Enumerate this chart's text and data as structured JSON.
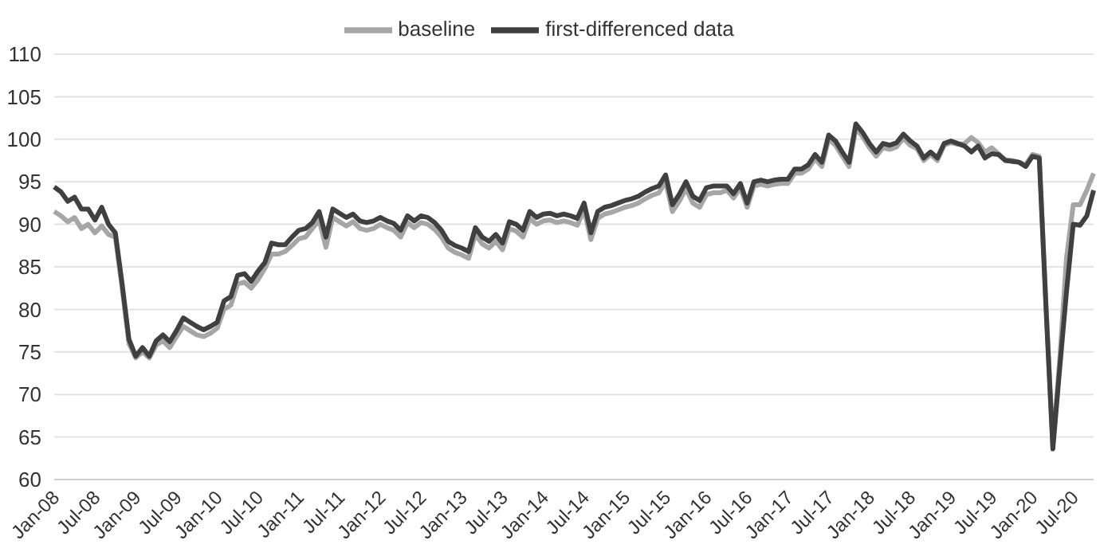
{
  "chart_data": {
    "type": "line",
    "categories": [
      "Jan-08",
      null,
      null,
      null,
      null,
      null,
      "Jul-08",
      null,
      null,
      null,
      null,
      null,
      "Jan-09",
      null,
      null,
      null,
      null,
      null,
      "Jul-09",
      null,
      null,
      null,
      null,
      null,
      "Jan-10",
      null,
      null,
      null,
      null,
      null,
      "Jul-10",
      null,
      null,
      null,
      null,
      null,
      "Jan-11",
      null,
      null,
      null,
      null,
      null,
      "Jul-11",
      null,
      null,
      null,
      null,
      null,
      "Jan-12",
      null,
      null,
      null,
      null,
      null,
      "Jul-12",
      null,
      null,
      null,
      null,
      null,
      "Jan-13",
      null,
      null,
      null,
      null,
      null,
      "Jul-13",
      null,
      null,
      null,
      null,
      null,
      "Jan-14",
      null,
      null,
      null,
      null,
      null,
      "Jul-14",
      null,
      null,
      null,
      null,
      null,
      "Jan-15",
      null,
      null,
      null,
      null,
      null,
      "Jul-15",
      null,
      null,
      null,
      null,
      null,
      "Jan-16",
      null,
      null,
      null,
      null,
      null,
      "Jul-16",
      null,
      null,
      null,
      null,
      null,
      "Jan-17",
      null,
      null,
      null,
      null,
      null,
      "Jul-17",
      null,
      null,
      null,
      null,
      null,
      "Jan-18",
      null,
      null,
      null,
      null,
      null,
      "Jul-18",
      null,
      null,
      null,
      null,
      null,
      "Jan-19",
      null,
      null,
      null,
      null,
      null,
      "Jul-19",
      null,
      null,
      null,
      null,
      null,
      "Jan-20",
      null,
      null,
      null,
      null,
      null,
      "Jul-20",
      null,
      null,
      null
    ],
    "series": [
      {
        "name": "baseline",
        "color": "#a6a6a6",
        "values": [
          91.5,
          91,
          90.3,
          90.8,
          89.5,
          90,
          89,
          89.8,
          88.8,
          88.5,
          82.5,
          76,
          74.3,
          75,
          74.3,
          75.8,
          76.3,
          75.5,
          76.8,
          78,
          77.5,
          77,
          76.8,
          77.2,
          77.8,
          80,
          80.5,
          83,
          83.2,
          82.5,
          83.5,
          84.8,
          86.5,
          86.5,
          86.8,
          87.5,
          88.3,
          88.5,
          89.5,
          90.5,
          87.3,
          90.8,
          90.3,
          89.8,
          90.3,
          89.5,
          89.3,
          89.5,
          90,
          89.6,
          89.3,
          88.5,
          90.2,
          89.6,
          90.2,
          90,
          89.4,
          88.5,
          87.2,
          86.7,
          86.4,
          86,
          88.8,
          87.7,
          87.2,
          88,
          87,
          89.5,
          89.2,
          88.5,
          90.7,
          90,
          90.4,
          90.5,
          90.2,
          90.4,
          90.2,
          89.9,
          91.7,
          88.2,
          90.7,
          91.2,
          91.4,
          91.7,
          92,
          92.2,
          92.5,
          93,
          93.4,
          93.7,
          95,
          91.5,
          92.7,
          94.2,
          92.5,
          92,
          93.5,
          93.7,
          93.7,
          94,
          93.1,
          94.3,
          92,
          94.5,
          94.7,
          94.5,
          94.7,
          94.8,
          94.8,
          96,
          96,
          96.5,
          97.7,
          96.8,
          100,
          99.3,
          98,
          96.8,
          101.3,
          100.3,
          99,
          98,
          99,
          98.8,
          99.1,
          100.1,
          99.3,
          98.9,
          97.5,
          98.2,
          97.5,
          99.3,
          99.6,
          99.4,
          99.5,
          100.2,
          99.6,
          98.5,
          99,
          98.3,
          97.6,
          97.5,
          97.3,
          97,
          98.2,
          98,
          80.5,
          64,
          74,
          86,
          92.3,
          92.3,
          94,
          96
        ]
      },
      {
        "name": "first-differenced data",
        "color": "#404040",
        "values": [
          94.4,
          93.8,
          92.7,
          93.2,
          91.8,
          91.8,
          90.5,
          92,
          90,
          89,
          83,
          76.5,
          74.5,
          75.5,
          74.5,
          76.3,
          77,
          76.2,
          77.5,
          79,
          78.5,
          78,
          77.6,
          78,
          78.5,
          81,
          81.5,
          84,
          84.2,
          83.3,
          84.5,
          85.5,
          87.8,
          87.6,
          87.6,
          88.5,
          89.3,
          89.5,
          90.2,
          91.5,
          88.5,
          91.8,
          91.3,
          90.8,
          91.2,
          90.4,
          90.2,
          90.4,
          90.8,
          90.4,
          90.1,
          89.3,
          91,
          90.4,
          91,
          90.8,
          90.2,
          89.3,
          88,
          87.5,
          87.2,
          86.8,
          89.6,
          88.5,
          88,
          88.8,
          87.8,
          90.3,
          90,
          89.3,
          91.5,
          90.8,
          91.2,
          91.3,
          91,
          91.2,
          91,
          90.7,
          92.5,
          89,
          91.5,
          92,
          92.2,
          92.5,
          92.8,
          93,
          93.3,
          93.8,
          94.2,
          94.5,
          95.8,
          92.3,
          93.5,
          95,
          93.3,
          92.8,
          94.3,
          94.5,
          94.5,
          94.5,
          93.6,
          94.8,
          92.5,
          95,
          95.2,
          95,
          95.2,
          95.3,
          95.3,
          96.5,
          96.5,
          97,
          98.2,
          97.3,
          100.5,
          99.8,
          98.5,
          97.3,
          101.8,
          100.8,
          99.5,
          98.5,
          99.5,
          99.3,
          99.6,
          100.6,
          99.8,
          99.2,
          97.8,
          98.5,
          97.8,
          99.5,
          99.8,
          99.5,
          99.2,
          98.5,
          99.2,
          97.8,
          98.3,
          98.2,
          97.5,
          97.4,
          97.3,
          96.8,
          98,
          97.8,
          80,
          63.6,
          73,
          82,
          90,
          89.9,
          91,
          94
        ]
      }
    ],
    "ylim": [
      60,
      110
    ],
    "yticks": [
      60,
      65,
      70,
      75,
      80,
      85,
      90,
      95,
      100,
      105,
      110
    ],
    "grid": "y",
    "legend": "top"
  }
}
